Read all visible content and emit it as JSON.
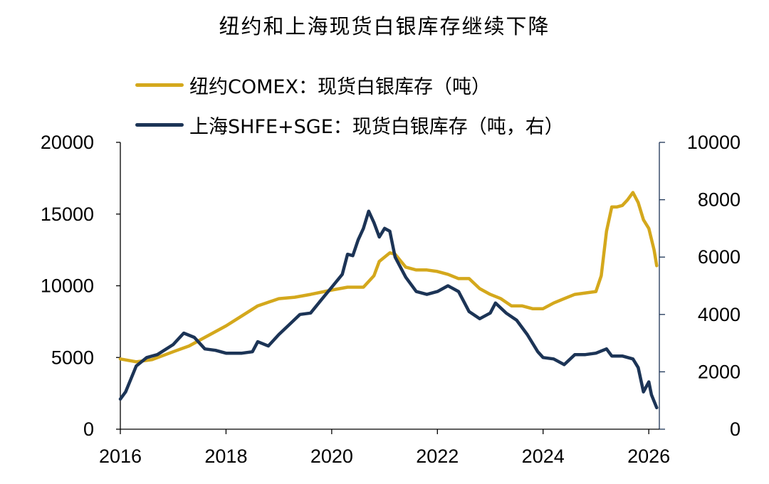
{
  "chart_data": {
    "type": "line",
    "title": "纽约和上海现货白银库存继续下降",
    "x_range": [
      2016,
      2026.2
    ],
    "x_ticks": [
      "2016",
      "2018",
      "2020",
      "2022",
      "2024",
      "2026"
    ],
    "y_left": {
      "range": [
        0,
        20000
      ],
      "ticks": [
        "0",
        "5000",
        "10000",
        "15000",
        "20000"
      ]
    },
    "y_right": {
      "range": [
        0,
        10000
      ],
      "ticks": [
        "0",
        "2000",
        "4000",
        "6000",
        "8000",
        "10000"
      ]
    },
    "legend_placement": "top-left",
    "grid": false,
    "series": [
      {
        "name": "纽约COMEX：现货白银库存（吨）",
        "axis": "left",
        "color": "#d4a81c",
        "points": [
          [
            2016.0,
            4900
          ],
          [
            2016.3,
            4700
          ],
          [
            2016.6,
            4850
          ],
          [
            2017.0,
            5400
          ],
          [
            2017.3,
            5800
          ],
          [
            2017.6,
            6400
          ],
          [
            2018.0,
            7200
          ],
          [
            2018.3,
            7900
          ],
          [
            2018.6,
            8600
          ],
          [
            2019.0,
            9100
          ],
          [
            2019.3,
            9200
          ],
          [
            2019.6,
            9400
          ],
          [
            2020.0,
            9700
          ],
          [
            2020.3,
            9900
          ],
          [
            2020.6,
            9900
          ],
          [
            2020.8,
            10700
          ],
          [
            2020.9,
            11700
          ],
          [
            2021.1,
            12300
          ],
          [
            2021.2,
            12200
          ],
          [
            2021.4,
            11300
          ],
          [
            2021.6,
            11100
          ],
          [
            2021.8,
            11100
          ],
          [
            2022.0,
            11000
          ],
          [
            2022.2,
            10800
          ],
          [
            2022.4,
            10500
          ],
          [
            2022.6,
            10500
          ],
          [
            2022.8,
            9800
          ],
          [
            2023.0,
            9400
          ],
          [
            2023.2,
            9100
          ],
          [
            2023.4,
            8600
          ],
          [
            2023.6,
            8600
          ],
          [
            2023.8,
            8400
          ],
          [
            2024.0,
            8400
          ],
          [
            2024.2,
            8800
          ],
          [
            2024.4,
            9100
          ],
          [
            2024.6,
            9400
          ],
          [
            2024.8,
            9500
          ],
          [
            2025.0,
            9600
          ],
          [
            2025.1,
            10700
          ],
          [
            2025.2,
            13800
          ],
          [
            2025.3,
            15500
          ],
          [
            2025.4,
            15500
          ],
          [
            2025.5,
            15600
          ],
          [
            2025.6,
            16000
          ],
          [
            2025.7,
            16500
          ],
          [
            2025.8,
            15800
          ],
          [
            2025.9,
            14600
          ],
          [
            2026.0,
            14000
          ],
          [
            2026.1,
            12500
          ],
          [
            2026.15,
            11400
          ]
        ]
      },
      {
        "name": "上海SHFE+SGE：现货白银库存（吨，右）",
        "axis": "right",
        "color": "#1c3456",
        "points": [
          [
            2016.0,
            1050
          ],
          [
            2016.1,
            1300
          ],
          [
            2016.3,
            2200
          ],
          [
            2016.5,
            2500
          ],
          [
            2016.7,
            2600
          ],
          [
            2017.0,
            2950
          ],
          [
            2017.2,
            3350
          ],
          [
            2017.4,
            3200
          ],
          [
            2017.6,
            2800
          ],
          [
            2017.8,
            2750
          ],
          [
            2018.0,
            2650
          ],
          [
            2018.3,
            2650
          ],
          [
            2018.5,
            2700
          ],
          [
            2018.6,
            3050
          ],
          [
            2018.8,
            2900
          ],
          [
            2019.0,
            3300
          ],
          [
            2019.2,
            3650
          ],
          [
            2019.4,
            4000
          ],
          [
            2019.6,
            4050
          ],
          [
            2019.8,
            4500
          ],
          [
            2020.0,
            4950
          ],
          [
            2020.2,
            5400
          ],
          [
            2020.3,
            6100
          ],
          [
            2020.4,
            6050
          ],
          [
            2020.5,
            6600
          ],
          [
            2020.6,
            7000
          ],
          [
            2020.7,
            7600
          ],
          [
            2020.8,
            7200
          ],
          [
            2020.9,
            6700
          ],
          [
            2021.0,
            7000
          ],
          [
            2021.1,
            6900
          ],
          [
            2021.2,
            6000
          ],
          [
            2021.4,
            5300
          ],
          [
            2021.6,
            4800
          ],
          [
            2021.8,
            4700
          ],
          [
            2022.0,
            4800
          ],
          [
            2022.2,
            5000
          ],
          [
            2022.4,
            4800
          ],
          [
            2022.6,
            4100
          ],
          [
            2022.8,
            3850
          ],
          [
            2023.0,
            4050
          ],
          [
            2023.1,
            4400
          ],
          [
            2023.3,
            4050
          ],
          [
            2023.5,
            3800
          ],
          [
            2023.7,
            3300
          ],
          [
            2023.9,
            2700
          ],
          [
            2024.0,
            2500
          ],
          [
            2024.2,
            2450
          ],
          [
            2024.4,
            2250
          ],
          [
            2024.6,
            2600
          ],
          [
            2024.8,
            2600
          ],
          [
            2025.0,
            2650
          ],
          [
            2025.2,
            2800
          ],
          [
            2025.3,
            2550
          ],
          [
            2025.5,
            2550
          ],
          [
            2025.7,
            2450
          ],
          [
            2025.8,
            2150
          ],
          [
            2025.9,
            1300
          ],
          [
            2026.0,
            1650
          ],
          [
            2026.05,
            1200
          ],
          [
            2026.15,
            750
          ]
        ]
      }
    ]
  }
}
